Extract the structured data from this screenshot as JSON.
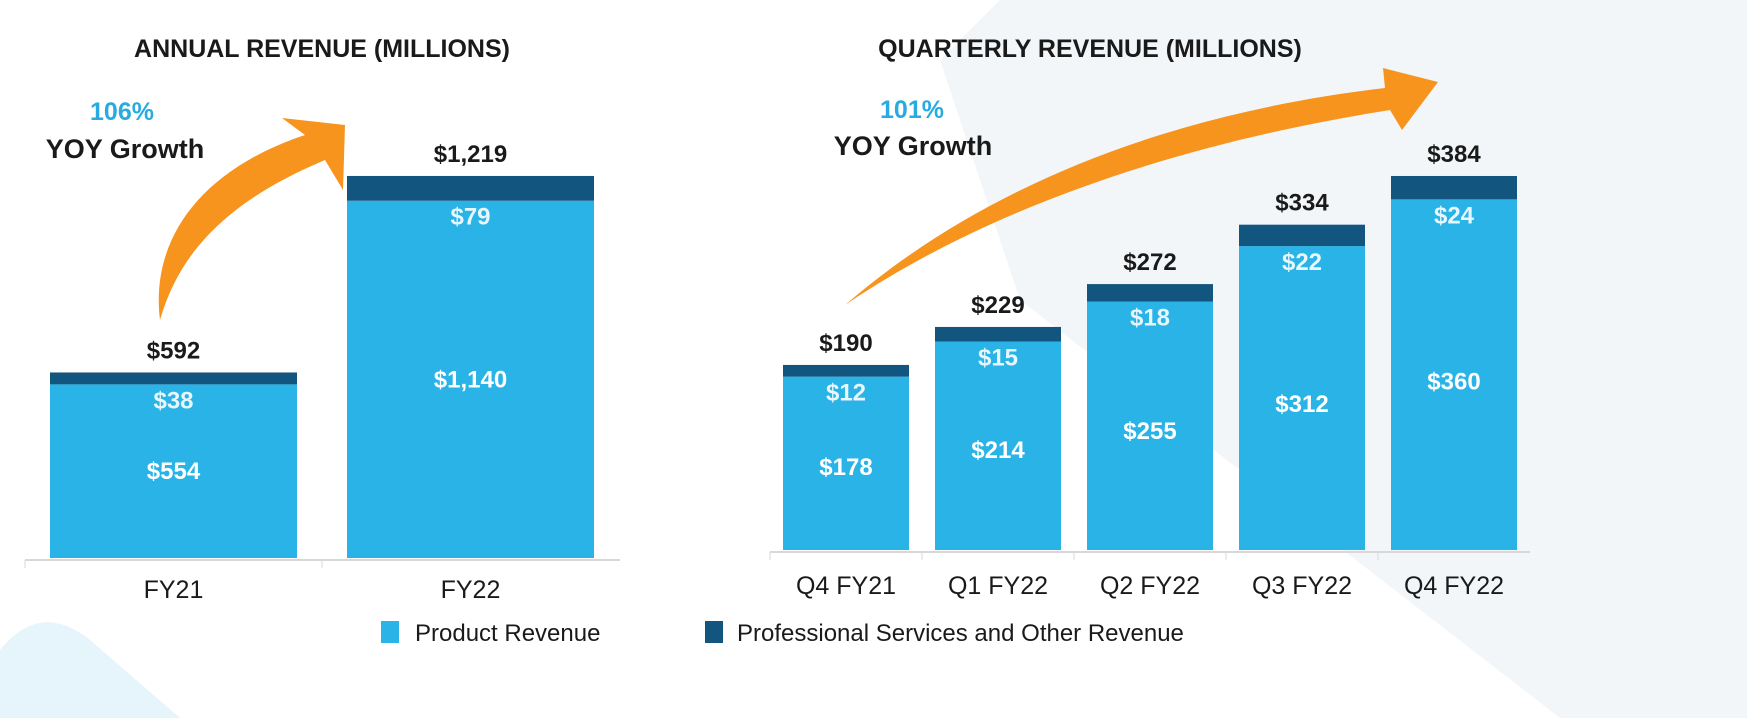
{
  "colors": {
    "product": "#29b3e6",
    "services": "#12557f",
    "arrow": "#f7941d",
    "growth_pct": "#29abe2",
    "background_shape": "#f2f6f8"
  },
  "legend": [
    {
      "label": "Product Revenue",
      "color": "#29b3e6"
    },
    {
      "label": "Professional Services and Other Revenue",
      "color": "#12557f"
    }
  ],
  "chart_data": [
    {
      "type": "bar",
      "stacked": true,
      "title": "ANNUAL REVENUE (MILLIONS)",
      "growth": {
        "value": "106%",
        "label": "YOY Growth"
      },
      "categories": [
        "FY21",
        "FY22"
      ],
      "series": [
        {
          "name": "Product Revenue",
          "values": [
            554,
            1140
          ],
          "labels": [
            "$554",
            "$1,140"
          ]
        },
        {
          "name": "Professional Services and Other Revenue",
          "values": [
            38,
            79
          ],
          "labels": [
            "$38",
            "$79"
          ]
        }
      ],
      "totals": [
        592,
        1219
      ],
      "total_labels": [
        "$592",
        "$1,219"
      ],
      "grid": false
    },
    {
      "type": "bar",
      "stacked": true,
      "title": "QUARTERLY REVENUE (MILLIONS)",
      "growth": {
        "value": "101%",
        "label": "YOY Growth"
      },
      "categories": [
        "Q4 FY21",
        "Q1 FY22",
        "Q2 FY22",
        "Q3 FY22",
        "Q4 FY22"
      ],
      "series": [
        {
          "name": "Product Revenue",
          "values": [
            178,
            214,
            255,
            312,
            360
          ],
          "labels": [
            "$178",
            "$214",
            "$255",
            "$312",
            "$360"
          ]
        },
        {
          "name": "Professional Services and Other Revenue",
          "values": [
            12,
            15,
            18,
            22,
            24
          ],
          "labels": [
            "$12",
            "$15",
            "$18",
            "$22",
            "$24"
          ]
        }
      ],
      "totals": [
        190,
        229,
        272,
        334,
        384
      ],
      "total_labels": [
        "$190",
        "$229",
        "$272",
        "$334",
        "$384"
      ],
      "grid": false
    }
  ]
}
